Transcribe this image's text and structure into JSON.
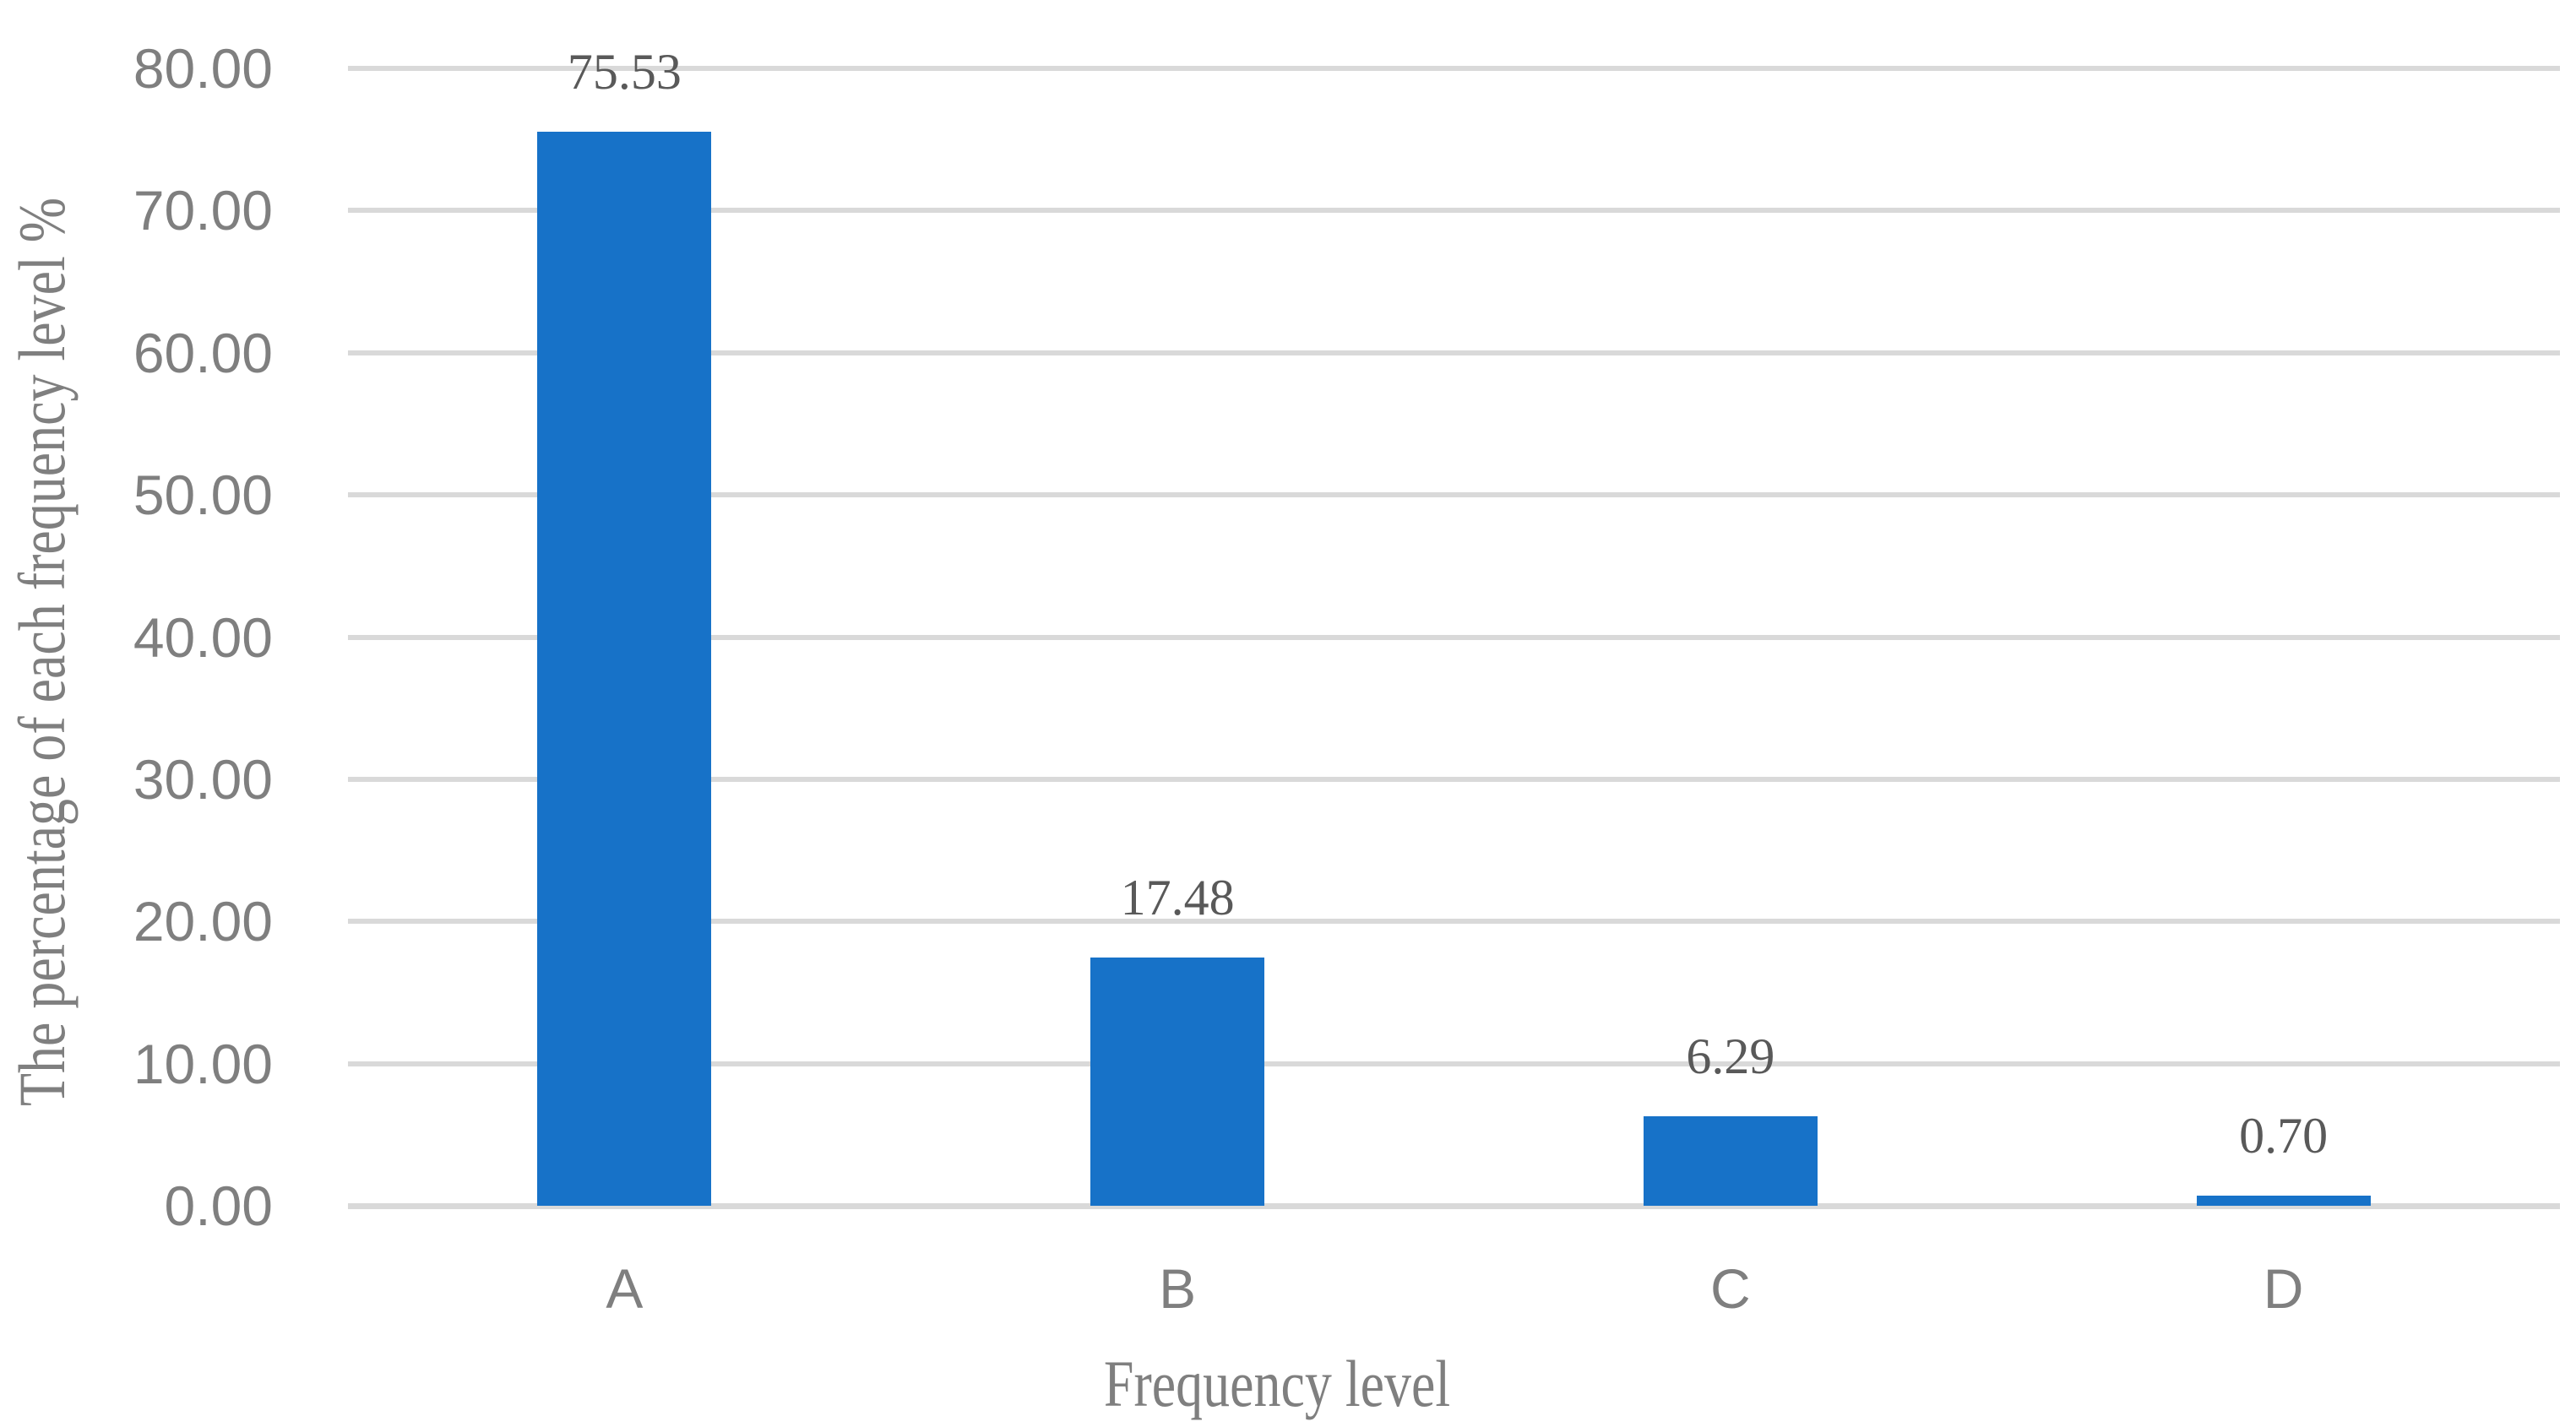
{
  "chart_data": {
    "type": "bar",
    "categories": [
      "A",
      "B",
      "C",
      "D"
    ],
    "values": [
      75.53,
      17.48,
      6.29,
      0.7
    ],
    "data_labels": [
      "75.53",
      "17.48",
      "6.29",
      "0.70"
    ],
    "title": "",
    "xlabel": "Frequency level",
    "ylabel": "The percentage of each frequency level %",
    "ylim": [
      0,
      80
    ],
    "ytick_step": 10,
    "yticks": [
      "80.00",
      "70.00",
      "60.00",
      "50.00",
      "40.00",
      "30.00",
      "20.00",
      "10.00",
      "0.00"
    ],
    "grid": true,
    "legend": false,
    "colors": {
      "bar": "#1772C8",
      "grid": "#D9D9D9",
      "axis_text": "#7F7F7F",
      "data_label": "#595959"
    }
  }
}
